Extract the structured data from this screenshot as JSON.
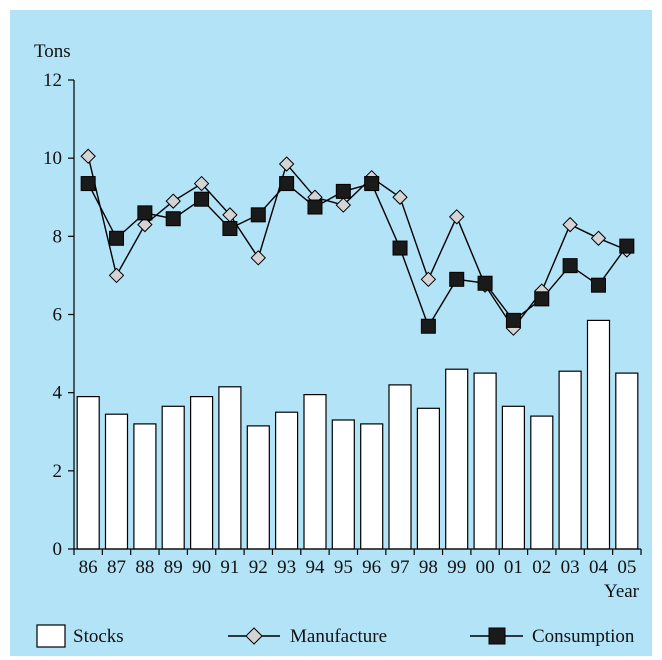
{
  "chart_data": {
    "type": "bar+line",
    "ylabel": "Tons",
    "xlabel": "Year",
    "ylim": [
      0,
      12
    ],
    "yticks": [
      0,
      2,
      4,
      6,
      8,
      10,
      12
    ],
    "categories": [
      "86",
      "87",
      "88",
      "89",
      "90",
      "91",
      "92",
      "93",
      "94",
      "95",
      "96",
      "97",
      "98",
      "99",
      "00",
      "01",
      "02",
      "03",
      "04",
      "05"
    ],
    "series": [
      {
        "name": "Stocks",
        "kind": "bar",
        "values": [
          3.9,
          3.45,
          3.2,
          3.65,
          3.9,
          4.15,
          3.15,
          3.5,
          3.95,
          3.3,
          3.2,
          4.2,
          3.6,
          4.6,
          4.5,
          3.65,
          3.4,
          4.55,
          5.85,
          4.5
        ]
      },
      {
        "name": "Manufacture",
        "kind": "line",
        "marker": "diamond",
        "values": [
          10.05,
          7.0,
          8.3,
          8.9,
          9.35,
          8.55,
          7.45,
          9.85,
          9.0,
          8.8,
          9.5,
          9.0,
          6.9,
          8.5,
          6.75,
          5.65,
          6.6,
          8.3,
          7.95,
          7.65
        ]
      },
      {
        "name": "Consumption",
        "kind": "line",
        "marker": "square",
        "values": [
          9.35,
          7.95,
          8.6,
          8.45,
          8.95,
          8.2,
          8.55,
          9.35,
          8.75,
          9.15,
          9.35,
          7.7,
          5.7,
          6.9,
          6.8,
          5.85,
          6.4,
          7.25,
          6.75,
          7.75
        ]
      }
    ],
    "legend_position": "bottom",
    "grid": false,
    "colors": {
      "background": "#b3e3f7",
      "bar_fill": "#ffffff",
      "manufacture_marker": "#d4d4d4",
      "consumption_marker": "#1a1a1a",
      "line": "#000000"
    }
  }
}
